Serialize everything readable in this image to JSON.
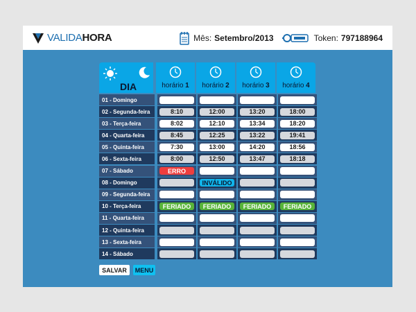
{
  "header": {
    "logo_part1": "VALIDA",
    "logo_part2": "HORA",
    "mes_label": "Mês:",
    "mes_value": "Setembro/2013",
    "token_label": "Token:",
    "token_value": "797188964"
  },
  "table": {
    "day_header": "DIA",
    "horarios": [
      {
        "label": "horário",
        "num": "1"
      },
      {
        "label": "horário",
        "num": "2"
      },
      {
        "label": "horário",
        "num": "3"
      },
      {
        "label": "horário",
        "num": "4"
      }
    ],
    "rows": [
      {
        "day": "01 - Domingo",
        "cells": [
          {
            "v": "",
            "s": "white"
          },
          {
            "v": "",
            "s": "white"
          },
          {
            "v": "",
            "s": "white"
          },
          {
            "v": "",
            "s": "white"
          }
        ]
      },
      {
        "day": "02 - Segunda-feira",
        "cells": [
          {
            "v": "8:10",
            "s": "gray"
          },
          {
            "v": "12:00",
            "s": "gray"
          },
          {
            "v": "13:20",
            "s": "gray"
          },
          {
            "v": "18:00",
            "s": "gray"
          }
        ]
      },
      {
        "day": "03 - Terça-feira",
        "cells": [
          {
            "v": "8:02",
            "s": "white"
          },
          {
            "v": "12:10",
            "s": "white"
          },
          {
            "v": "13:34",
            "s": "white"
          },
          {
            "v": "18:20",
            "s": "white"
          }
        ]
      },
      {
        "day": "04 - Quarta-feira",
        "cells": [
          {
            "v": "8:45",
            "s": "gray"
          },
          {
            "v": "12:25",
            "s": "gray"
          },
          {
            "v": "13:22",
            "s": "gray"
          },
          {
            "v": "19:41",
            "s": "gray"
          }
        ]
      },
      {
        "day": "05 - Quinta-feira",
        "cells": [
          {
            "v": "7:30",
            "s": "white"
          },
          {
            "v": "13:00",
            "s": "white"
          },
          {
            "v": "14:20",
            "s": "white"
          },
          {
            "v": "18:56",
            "s": "white"
          }
        ]
      },
      {
        "day": "06 - Sexta-feira",
        "cells": [
          {
            "v": "8:00",
            "s": "gray"
          },
          {
            "v": "12:50",
            "s": "gray"
          },
          {
            "v": "13:47",
            "s": "gray"
          },
          {
            "v": "18:18",
            "s": "gray"
          }
        ]
      },
      {
        "day": "07 - Sábado",
        "cells": [
          {
            "v": "ERRO",
            "s": "erro"
          },
          {
            "v": "",
            "s": "white"
          },
          {
            "v": "",
            "s": "white"
          },
          {
            "v": "",
            "s": "white"
          }
        ]
      },
      {
        "day": "08 - Domingo",
        "cells": [
          {
            "v": "",
            "s": "gray"
          },
          {
            "v": "INVÁLIDO",
            "s": "inv"
          },
          {
            "v": "",
            "s": "gray"
          },
          {
            "v": "",
            "s": "gray"
          }
        ]
      },
      {
        "day": "09 - Segunda-feira",
        "cells": [
          {
            "v": "",
            "s": "white"
          },
          {
            "v": "",
            "s": "white"
          },
          {
            "v": "",
            "s": "white"
          },
          {
            "v": "",
            "s": "white"
          }
        ]
      },
      {
        "day": "10 - Terça-feira",
        "cells": [
          {
            "v": "FERIADO",
            "s": "fer"
          },
          {
            "v": "FERIADO",
            "s": "fer"
          },
          {
            "v": "FERIADO",
            "s": "fer"
          },
          {
            "v": "FERIADO",
            "s": "fer"
          }
        ]
      },
      {
        "day": "11 - Quarta-feira",
        "cells": [
          {
            "v": "",
            "s": "white"
          },
          {
            "v": "",
            "s": "white"
          },
          {
            "v": "",
            "s": "white"
          },
          {
            "v": "",
            "s": "white"
          }
        ]
      },
      {
        "day": "12 - Quinta-feira",
        "cells": [
          {
            "v": "",
            "s": "gray"
          },
          {
            "v": "",
            "s": "gray"
          },
          {
            "v": "",
            "s": "gray"
          },
          {
            "v": "",
            "s": "gray"
          }
        ]
      },
      {
        "day": "13 - Sexta-feira",
        "cells": [
          {
            "v": "",
            "s": "white"
          },
          {
            "v": "",
            "s": "white"
          },
          {
            "v": "",
            "s": "white"
          },
          {
            "v": "",
            "s": "white"
          }
        ]
      },
      {
        "day": "14 - Sábado",
        "cells": [
          {
            "v": "",
            "s": "gray"
          },
          {
            "v": "",
            "s": "gray"
          },
          {
            "v": "",
            "s": "gray"
          },
          {
            "v": "",
            "s": "gray"
          }
        ]
      }
    ]
  },
  "actions": {
    "salvar": "SALVAR",
    "menu": "MENU"
  },
  "colors": {
    "background_panel": "#3c8bbf",
    "header_cyan": "#0aa6e6",
    "row_dark": "#1f3a5e",
    "row_light": "#34527a",
    "erro": "#ee3e3e",
    "feriado": "#58b43a",
    "invalido": "#10b4ea"
  }
}
